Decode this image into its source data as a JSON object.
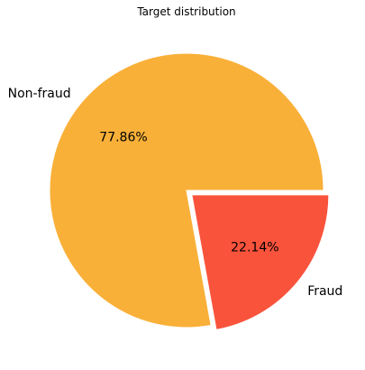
{
  "chart_data": {
    "type": "pie",
    "title": "Target distribution",
    "slices": [
      {
        "label": "Non-fraud",
        "value": 77.86,
        "pct_label": "77.86%",
        "color": "#f9b038",
        "explode": 0
      },
      {
        "label": "Fraud",
        "value": 22.14,
        "pct_label": "22.14%",
        "color": "#f9533c",
        "explode": 0.05
      }
    ],
    "start_angle_deg": 0,
    "direction": "counterclockwise",
    "legend": "none"
  }
}
